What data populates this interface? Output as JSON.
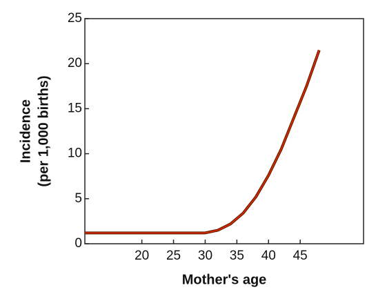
{
  "chart_data": {
    "type": "line",
    "xlabel": "Mother's age",
    "ylabel": [
      "Incidence",
      "(per 1,000 births)"
    ],
    "x": [
      11,
      30,
      32,
      34,
      36,
      38,
      40,
      42,
      44,
      46,
      48
    ],
    "series": [
      {
        "name": "Incidence",
        "color": "#d42a00",
        "values": [
          1.2,
          1.2,
          1.5,
          2.2,
          3.4,
          5.2,
          7.6,
          10.5,
          14,
          17.5,
          21.5
        ]
      }
    ],
    "xlim": [
      11,
      55
    ],
    "ylim": [
      0,
      25
    ],
    "xticks": [
      20,
      25,
      30,
      35,
      40,
      45
    ],
    "yticks": [
      0,
      5,
      10,
      15,
      20,
      25
    ],
    "grid": false
  }
}
